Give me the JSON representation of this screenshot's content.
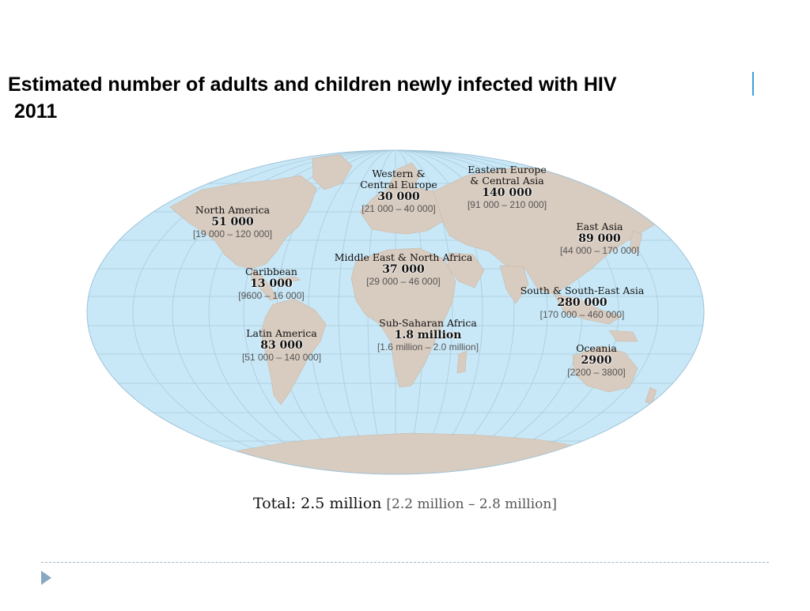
{
  "title": {
    "line1": "Estimated number of adults and children newly infected with HIV",
    "line2": "2011"
  },
  "colors": {
    "ocean": "#c9e8f7",
    "land": "#d8cbbf",
    "grid": "#a9c9db",
    "title_accent": "#3aa0d8",
    "range_text": "#555555"
  },
  "regions": [
    {
      "id": "north-america",
      "name": "North America",
      "value": "51 000",
      "range": "[19 000 – 120 000]"
    },
    {
      "id": "caribbean",
      "name": "Caribbean",
      "value": "13 000",
      "range": "[9600 – 16 000]"
    },
    {
      "id": "latin-america",
      "name": "Latin America",
      "value": "83 000",
      "range": "[51 000 – 140 000]"
    },
    {
      "id": "western-central-europe",
      "name": "Western & Central Europe",
      "name_line1": "Western &",
      "name_line2": "Central Europe",
      "value": "30 000",
      "range": "[21 000 – 40 000]"
    },
    {
      "id": "eastern-europe-central-asia",
      "name": "Eastern Europe & Central Asia",
      "name_line1": "Eastern Europe",
      "name_line2": "& Central Asia",
      "value": "140 000",
      "range": "[91 000 – 210 000]"
    },
    {
      "id": "east-asia",
      "name": "East Asia",
      "value": "89 000",
      "range": "[44 000 – 170 000]"
    },
    {
      "id": "middle-east-north-africa",
      "name": "Middle East & North Africa",
      "value": "37 000",
      "range": "[29 000 – 46 000]"
    },
    {
      "id": "south-southeast-asia",
      "name": "South & South-East Asia",
      "value": "280 000",
      "range": "[170 000 – 460 000]"
    },
    {
      "id": "sub-saharan-africa",
      "name": "Sub-Saharan Africa",
      "value": "1.8 million",
      "range": "[1.6 million – 2.0 million]"
    },
    {
      "id": "oceania",
      "name": "Oceania",
      "value": "2900",
      "range": "[2200 – 3800]"
    }
  ],
  "total": {
    "label": "Total: 2.5 million",
    "range": "[2.2 million – 2.8 million]"
  }
}
